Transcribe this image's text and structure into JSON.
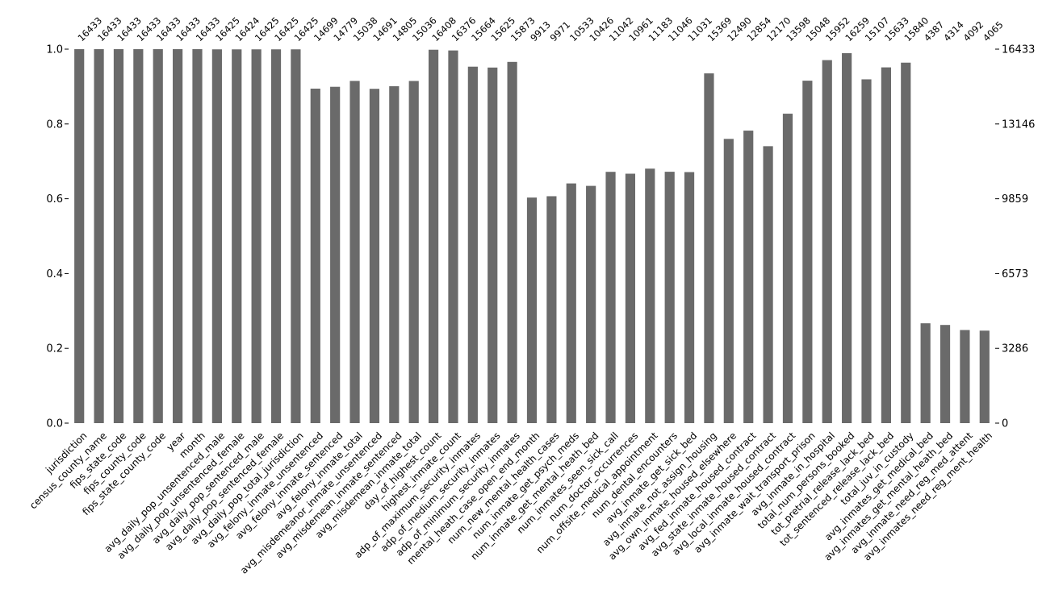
{
  "chart_data": {
    "type": "bar",
    "title": "",
    "xlabel": "",
    "ylabel": "",
    "bar_color": "#6a6a6a",
    "ylim": [
      0,
      1
    ],
    "left_ticks": [
      "0.0",
      "0.2",
      "0.4",
      "0.6",
      "0.8",
      "1.0"
    ],
    "right_ticks": [
      "0",
      "3286",
      "6573",
      "9859",
      "13146",
      "16433"
    ],
    "total": 16433,
    "categories": [
      "jurisdiction",
      "census_county_name",
      "fips_state_code",
      "fips_county_code",
      "fips_state_county_code",
      "year",
      "month",
      "avg_daily_pop_unsentenced_male",
      "avg_daily_pop_unsentenced_female",
      "avg_daily_pop_sentenced_male",
      "avg_daily_pop_sentenced_female",
      "avg_daily_pop_total_jurisdiction",
      "avg_felony_inmate_unsentenced",
      "avg_felony_inmate_sentenced",
      "avg_felony_inmate_total",
      "avg_misdemeanor_inmate_unsentenced",
      "avg_misdemean_inmate_sentenced",
      "avg_misdemean_inmate_total",
      "day_of_highest_count",
      "highest_inmate_count",
      "adp_of_maximum_security_inmates",
      "adp_of_medium_security_inmates",
      "adp_of_minimum_security_inmates",
      "mental_heath_case_open_end_month",
      "num_new_mental_health_cases",
      "num_inmate_get_psych_meds",
      "num_inmate_get_mental_heath_bed",
      "num_inmates_seen_sick_call",
      "num_doctor_occurrences",
      "num_offsite_medical_appointment",
      "num_dental_encounters",
      "avg_inmate_get_sick_bed",
      "avg_inmate_not_assign_housing",
      "avg_own_inmate_housed_elsewhere",
      "avg_fed_inmate_housed_contract",
      "avg_state_inmate_housed_contract",
      "avg_local_inmate_housed_contract",
      "avg_inmate_wait_transport_prison",
      "avg_inmate_in_hospital",
      "total_num_persons_booked",
      "tot_pretrial_release_lack_bed",
      "tot_sentenced_release_lack_bed",
      "total_juv_in_custody",
      "avg_inmates_get_medical_bed",
      "avg_inmates_get_mental_heath_bed",
      "avg_inmate_need_reg_med_attent",
      "avg_inmates_need_reg_ment_health"
    ],
    "values": [
      16433,
      16433,
      16433,
      16433,
      16433,
      16433,
      16433,
      16425,
      16424,
      16425,
      16425,
      16425,
      14699,
      14779,
      15038,
      14691,
      14805,
      15036,
      16408,
      16376,
      15664,
      15625,
      15873,
      9913,
      9971,
      10533,
      10426,
      11042,
      10961,
      11183,
      11046,
      11031,
      15369,
      12490,
      12854,
      12170,
      13598,
      15048,
      15952,
      16259,
      15107,
      15633,
      15840,
      4387,
      4314,
      4092,
      4065
    ]
  }
}
